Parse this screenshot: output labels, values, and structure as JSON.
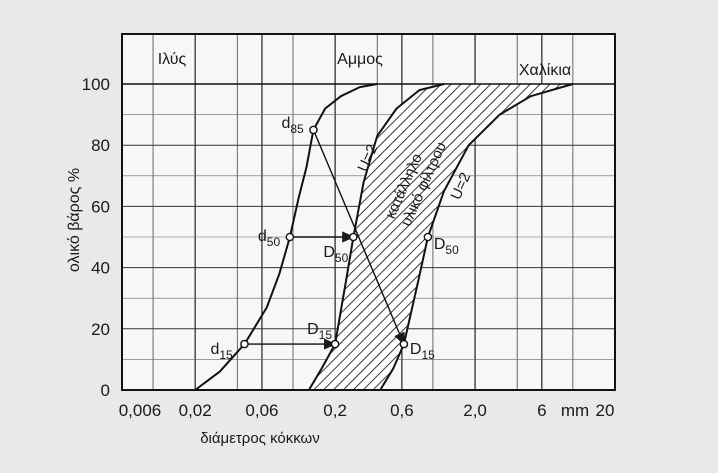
{
  "chart_data": {
    "type": "line",
    "xlabel": "διάμετρος κόκκων",
    "ylabel": "ολικό βάρος %",
    "x_scale": "log",
    "x_unit": "mm",
    "x_ticks": [
      "0,006",
      "0,02",
      "0,06",
      "0,2",
      "0,6",
      "2,0",
      "6",
      "20"
    ],
    "x_tick_values": [
      0.006,
      0.02,
      0.06,
      0.2,
      0.6,
      2.0,
      6,
      20
    ],
    "y_ticks": [
      "0",
      "20",
      "40",
      "60",
      "80",
      "100"
    ],
    "y_tick_values": [
      0,
      20,
      40,
      60,
      80,
      100
    ],
    "ylim": [
      0,
      100
    ],
    "grid": true,
    "zones": [
      "Ιλύς",
      "Αμμος",
      "Χαλίκια"
    ],
    "series": [
      {
        "values": [
          {
            "x": 0.02,
            "y": 0
          },
          {
            "x": 0.03,
            "y": 6
          },
          {
            "x": 0.045,
            "y": 15
          },
          {
            "x": 0.065,
            "y": 27
          },
          {
            "x": 0.08,
            "y": 38
          },
          {
            "x": 0.095,
            "y": 50
          },
          {
            "x": 0.11,
            "y": 63
          },
          {
            "x": 0.125,
            "y": 73
          },
          {
            "x": 0.14,
            "y": 85
          },
          {
            "x": 0.17,
            "y": 92
          },
          {
            "x": 0.22,
            "y": 96
          },
          {
            "x": 0.3,
            "y": 99
          },
          {
            "x": 0.4,
            "y": 100
          }
        ]
      },
      {
        "values": [
          {
            "x": 0.13,
            "y": 0
          },
          {
            "x": 0.16,
            "y": 7
          },
          {
            "x": 0.2,
            "y": 15
          },
          {
            "x": 0.24,
            "y": 36
          },
          {
            "x": 0.27,
            "y": 50
          },
          {
            "x": 0.32,
            "y": 68
          },
          {
            "x": 0.4,
            "y": 83
          },
          {
            "x": 0.55,
            "y": 92
          },
          {
            "x": 0.8,
            "y": 98
          },
          {
            "x": 1.2,
            "y": 100
          }
        ]
      },
      {
        "values": [
          {
            "x": 0.42,
            "y": 0
          },
          {
            "x": 0.52,
            "y": 7
          },
          {
            "x": 0.62,
            "y": 15
          },
          {
            "x": 0.78,
            "y": 35
          },
          {
            "x": 0.92,
            "y": 50
          },
          {
            "x": 1.2,
            "y": 65
          },
          {
            "x": 1.8,
            "y": 80
          },
          {
            "x": 3.0,
            "y": 90
          },
          {
            "x": 5.0,
            "y": 96
          },
          {
            "x": 10,
            "y": 100
          }
        ]
      }
    ],
    "points": [
      {
        "label": "d85",
        "x": 0.14,
        "y": 85
      },
      {
        "label": "d50",
        "x": 0.095,
        "y": 50
      },
      {
        "label": "d15",
        "x": 0.045,
        "y": 15
      },
      {
        "label": "D50",
        "x": 0.27,
        "y": 50
      },
      {
        "label": "D15",
        "x": 0.2,
        "y": 15
      },
      {
        "label": "D50",
        "x": 0.92,
        "y": 50
      },
      {
        "label": "D15",
        "x": 0.62,
        "y": 15
      }
    ],
    "arrows": [
      {
        "from": {
          "x": 0.14,
          "y": 85
        },
        "to": {
          "x": 0.62,
          "y": 15
        }
      },
      {
        "from": {
          "x": 0.095,
          "y": 50
        },
        "to": {
          "x": 0.27,
          "y": 50
        }
      },
      {
        "from": {
          "x": 0.045,
          "y": 15
        },
        "to": {
          "x": 0.2,
          "y": 15
        }
      }
    ],
    "annotations": [
      "U=2",
      "U=2",
      "κατάλληλο",
      "υλικό φίλτρου"
    ],
    "shaded_region": "between series 2 and series 3"
  }
}
